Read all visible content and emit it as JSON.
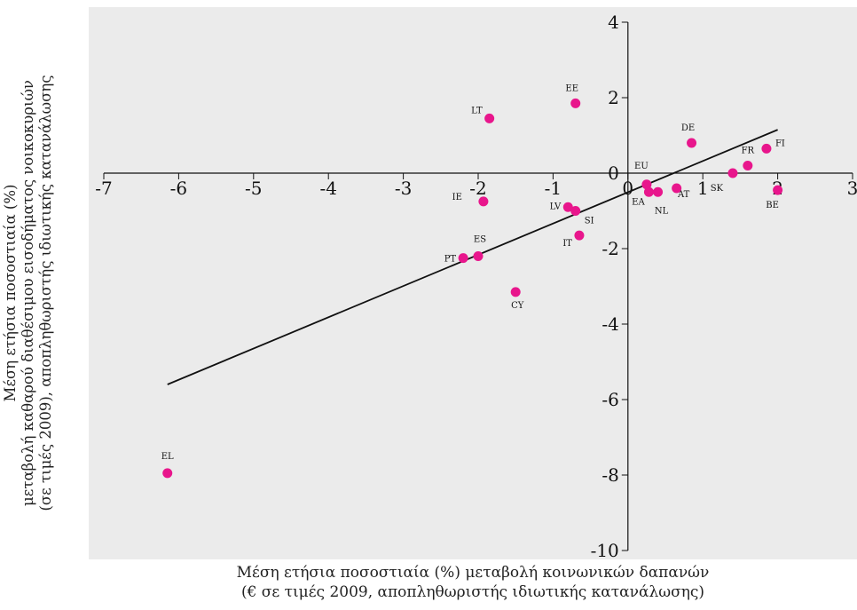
{
  "chart_data": {
    "type": "scatter",
    "xlabel_lines": [
      "Μέση ετήσια ποσοστιαία (%) μεταβολή κοινωνικών δαπανών",
      "(€ σε τιμές 2009, αποπληθωριστής ιδιωτικής κατανάλωσης)"
    ],
    "ylabel_lines": [
      "Μέση ετήσια ποσοστιαία (%)",
      "μεταβολή καθαρού διαθέσιμου εισοδήματος νοικοκυριών",
      "(σε τιμές 2009), αποπληθωριστής ιδιωτικής κατανάλωσης"
    ],
    "xlim": [
      -7,
      3
    ],
    "ylim": [
      -10,
      4
    ],
    "x_ticks": [
      "-7",
      "-6",
      "-5",
      "-4",
      "-3",
      "-2",
      "-1",
      "0",
      "1",
      "2",
      "3"
    ],
    "y_ticks": [
      "4",
      "2",
      "0",
      "-2",
      "-4",
      "-6",
      "-8",
      "-10"
    ],
    "grid": false,
    "background_color": "#ebebeb",
    "marker_color": "#e8168c",
    "trendline_color": "#111111",
    "trendline": {
      "x1": -6.15,
      "y1": -5.6,
      "x2": 2.0,
      "y2": 1.15
    },
    "points": [
      {
        "label": "EL",
        "x": -6.15,
        "y": -7.95
      },
      {
        "label": "LT",
        "x": -1.85,
        "y": 1.45
      },
      {
        "label": "EE",
        "x": -0.7,
        "y": 1.85
      },
      {
        "label": "IE",
        "x": -1.93,
        "y": -0.75
      },
      {
        "label": "LV",
        "x": -0.8,
        "y": -0.9
      },
      {
        "label": "SI",
        "x": -0.7,
        "y": -1.0
      },
      {
        "label": "IT",
        "x": -0.65,
        "y": -1.65
      },
      {
        "label": "ES",
        "x": -2.0,
        "y": -2.2
      },
      {
        "label": "PT",
        "x": -2.2,
        "y": -2.25
      },
      {
        "label": "CY",
        "x": -1.5,
        "y": -3.15
      },
      {
        "label": "EU",
        "x": 0.25,
        "y": -0.3
      },
      {
        "label": "EA",
        "x": 0.28,
        "y": -0.5
      },
      {
        "label": "NL",
        "x": 0.4,
        "y": -0.5
      },
      {
        "label": "AT",
        "x": 0.65,
        "y": -0.4
      },
      {
        "label": "DE",
        "x": 0.85,
        "y": 0.8
      },
      {
        "label": "SK",
        "x": 1.4,
        "y": 0.0
      },
      {
        "label": "FR",
        "x": 1.6,
        "y": 0.2
      },
      {
        "label": "FI",
        "x": 1.85,
        "y": 0.65
      },
      {
        "label": "BE",
        "x": 2.0,
        "y": -0.45
      }
    ]
  }
}
